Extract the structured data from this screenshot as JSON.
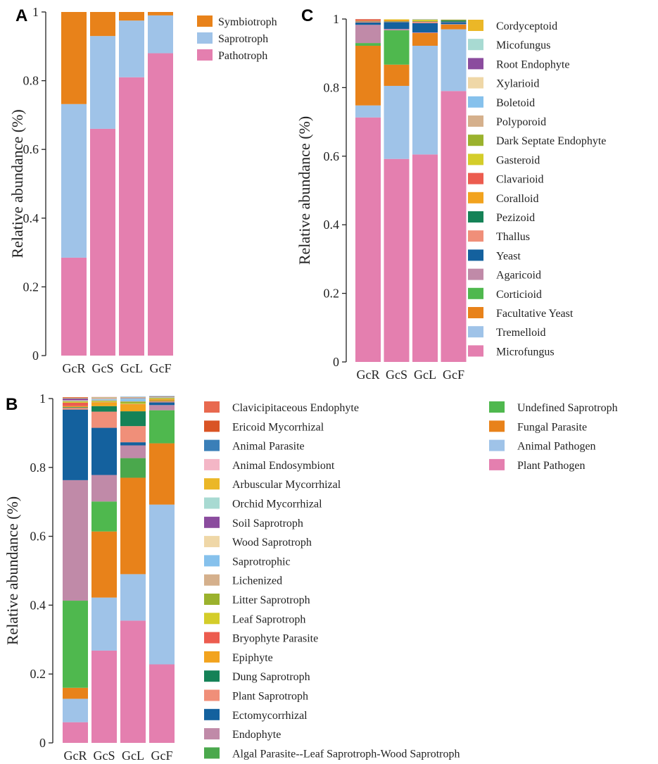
{
  "chart_data": [
    {
      "panel": "A",
      "type": "bar",
      "stacked": true,
      "ylabel": "Relative abundance (%)",
      "ylim": [
        0,
        1
      ],
      "yticks": [
        "0",
        "0.2",
        "0.4",
        "0.6",
        "0.8",
        "1"
      ],
      "categories": [
        "GcR",
        "GcS",
        "GcL",
        "GcF"
      ],
      "legend": "right",
      "series": [
        {
          "name": "Pathotroph",
          "color": "#e47faf",
          "values": [
            0.285,
            0.66,
            0.81,
            0.88
          ]
        },
        {
          "name": "Saprotroph",
          "color": "#9fc3e8",
          "values": [
            0.447,
            0.27,
            0.165,
            0.11
          ]
        },
        {
          "name": "Symbiotroph",
          "color": "#e8821a",
          "values": [
            0.268,
            0.07,
            0.025,
            0.01
          ]
        }
      ]
    },
    {
      "panel": "B",
      "type": "bar",
      "stacked": true,
      "ylabel": "Relative abundance (%)",
      "ylim": [
        0,
        1
      ],
      "yticks": [
        "0",
        "0.2",
        "0.4",
        "0.6",
        "0.8",
        "1"
      ],
      "categories": [
        "GcR",
        "GcS",
        "GcL",
        "GcF"
      ],
      "legend": "right",
      "series": [
        {
          "name": "Plant Pathogen",
          "color": "#e47faf",
          "values": [
            0.06,
            0.268,
            0.355,
            0.228
          ]
        },
        {
          "name": "Animal Pathogen",
          "color": "#9fc3e8",
          "values": [
            0.068,
            0.154,
            0.135,
            0.464
          ]
        },
        {
          "name": "Fungal Parasite",
          "color": "#e8821a",
          "values": [
            0.032,
            0.192,
            0.28,
            0.178
          ]
        },
        {
          "name": "Undefined Saprotroph",
          "color": "#4fb84e",
          "values": [
            0.253,
            0.087,
            0.0,
            0.096
          ]
        },
        {
          "name": "Algal Parasite--Leaf Saprotroph-Wood Saprotroph",
          "color": "#4aa84c",
          "values": [
            0.0,
            0.0,
            0.057,
            0.0
          ]
        },
        {
          "name": "Endophyte",
          "color": "#c08aa8",
          "values": [
            0.35,
            0.077,
            0.037,
            0.015
          ]
        },
        {
          "name": "Ectomycorrhizal",
          "color": "#14619e",
          "values": [
            0.205,
            0.137,
            0.009,
            0.008
          ]
        },
        {
          "name": "Plant Saprotroph",
          "color": "#f08f79",
          "values": [
            0.005,
            0.047,
            0.047,
            0.003
          ]
        },
        {
          "name": "Dung Saprotroph",
          "color": "#158257",
          "values": [
            0.002,
            0.016,
            0.043,
            0.001
          ]
        },
        {
          "name": "Epiphyte",
          "color": "#f2a31e",
          "values": [
            0.003,
            0.01,
            0.02,
            0.003
          ]
        },
        {
          "name": "Bryophyte Parasite",
          "color": "#ec5c4f",
          "values": [
            0.01,
            0.001,
            0.001,
            0.001
          ]
        },
        {
          "name": "Leaf Saprotroph",
          "color": "#d4cd2a",
          "values": [
            0.003,
            0.003,
            0.002,
            0.003
          ]
        },
        {
          "name": "Litter Saprotroph",
          "color": "#9bb22d",
          "values": [
            0.001,
            0.001,
            0.005,
            0.001
          ]
        },
        {
          "name": "Lichenized",
          "color": "#d5b08c",
          "values": [
            0.001,
            0.002,
            0.001,
            0.001
          ]
        },
        {
          "name": "Saprotrophic",
          "color": "#86c1ec",
          "values": [
            0.001,
            0.003,
            0.007,
            0.001
          ]
        },
        {
          "name": "Wood Saprotroph",
          "color": "#efd7a7",
          "values": [
            0.001,
            0.003,
            0.001,
            0.001
          ]
        },
        {
          "name": "Soil Saprotroph",
          "color": "#8b4c9e",
          "values": [
            0.005,
            0.001,
            0.001,
            0.001
          ]
        },
        {
          "name": "Orchid Mycorrhizal",
          "color": "#a8dad2",
          "values": [
            0.001,
            0.001,
            0.001,
            0.0
          ]
        },
        {
          "name": "Arbuscular Mycorrhizal",
          "color": "#ebb727",
          "values": [
            0.001,
            0.001,
            0.001,
            0.001
          ]
        },
        {
          "name": "Animal Endosymbiont",
          "color": "#f4b6c6",
          "values": [
            0.0,
            0.001,
            0.001,
            0.0
          ]
        },
        {
          "name": "Animal Parasite",
          "color": "#3a7fb8",
          "values": [
            0.0,
            0.0,
            0.001,
            0.001
          ]
        },
        {
          "name": "Ericoid Mycorrhizal",
          "color": "#d95425",
          "values": [
            0.001,
            0.0,
            0.0,
            0.0
          ]
        },
        {
          "name": "Clavicipitaceous Endophyte",
          "color": "#e8694f",
          "values": [
            0.001,
            0.0,
            0.0,
            0.0
          ]
        }
      ]
    },
    {
      "panel": "C",
      "type": "bar",
      "stacked": true,
      "ylabel": "Relative abundance (%)",
      "ylim": [
        0,
        1
      ],
      "yticks": [
        "0",
        "0.2",
        "0.4",
        "0.6",
        "0.8",
        "1"
      ],
      "categories": [
        "GcR",
        "GcS",
        "GcL",
        "GcF"
      ],
      "legend": "right",
      "series": [
        {
          "name": "Microfungus",
          "color": "#e47faf",
          "values": [
            0.713,
            0.592,
            0.605,
            0.79
          ]
        },
        {
          "name": "Tremelloid",
          "color": "#9fc3e8",
          "values": [
            0.035,
            0.213,
            0.317,
            0.18
          ]
        },
        {
          "name": "Facultative Yeast",
          "color": "#e8821a",
          "values": [
            0.174,
            0.062,
            0.037,
            0.014
          ]
        },
        {
          "name": "Corticioid",
          "color": "#4fb84e",
          "values": [
            0.008,
            0.1,
            0.0,
            0.0
          ]
        },
        {
          "name": "Agaricoid",
          "color": "#c08aa8",
          "values": [
            0.053,
            0.004,
            0.002,
            0.001
          ]
        },
        {
          "name": "Yeast",
          "color": "#14619e",
          "values": [
            0.007,
            0.02,
            0.027,
            0.006
          ]
        },
        {
          "name": "Thallus",
          "color": "#f08f79",
          "values": [
            0.003,
            0.001,
            0.004,
            0.001
          ]
        },
        {
          "name": "Pezizoid",
          "color": "#158257",
          "values": [
            0.001,
            0.001,
            0.001,
            0.004
          ]
        },
        {
          "name": "Coralloid",
          "color": "#f2a31e",
          "values": [
            0.001,
            0.005,
            0.001,
            0.001
          ]
        },
        {
          "name": "Clavarioid",
          "color": "#ec5c4f",
          "values": [
            0.004,
            0.0,
            0.0,
            0.0
          ]
        },
        {
          "name": "Gasteroid",
          "color": "#d4cd2a",
          "values": [
            0.0,
            0.001,
            0.004,
            0.0
          ]
        },
        {
          "name": "Dark Septate Endophyte",
          "color": "#9bb22d",
          "values": [
            0.0,
            0.0,
            0.0,
            0.001
          ]
        },
        {
          "name": "Polyporoid",
          "color": "#d5b08c",
          "values": [
            0.001,
            0.0,
            0.0,
            0.0
          ]
        },
        {
          "name": "Boletoid",
          "color": "#86c1ec",
          "values": [
            0.0,
            0.0,
            0.001,
            0.0
          ]
        },
        {
          "name": "Xylarioid",
          "color": "#efd7a7",
          "values": [
            0.0,
            0.0,
            0.001,
            0.0
          ]
        },
        {
          "name": "Root Endophyte",
          "color": "#8b4c9e",
          "values": [
            0.0,
            0.0,
            0.0,
            0.0
          ]
        },
        {
          "name": "Micofungus",
          "color": "#a8dad2",
          "values": [
            0.0,
            0.0,
            0.0,
            0.001
          ]
        },
        {
          "name": "Cordyceptoid",
          "color": "#ebb727",
          "values": [
            0.0,
            0.0,
            0.0,
            0.0
          ]
        }
      ]
    }
  ]
}
